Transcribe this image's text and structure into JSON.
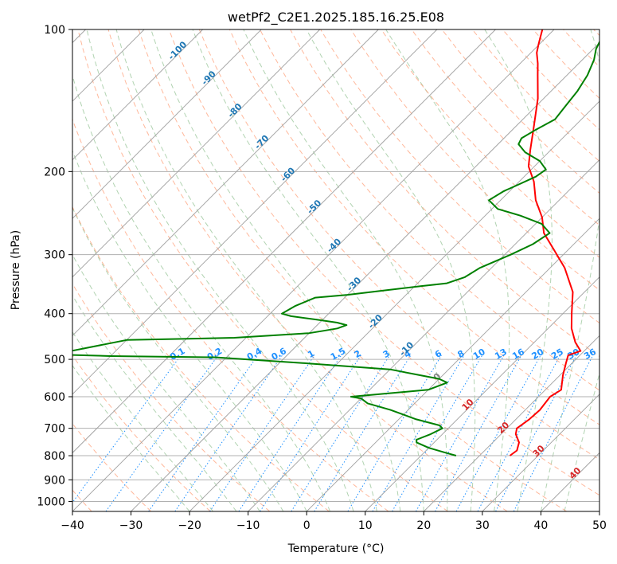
{
  "chart_data": {
    "type": "line",
    "chart_kind": "skew-t log-p diagram",
    "title": "wetPf2_C2E1.2025.185.16.25.E08",
    "xlabel": "Temperature (°C)",
    "ylabel": "Pressure (hPa)",
    "xlim": [
      -40,
      50
    ],
    "ylim": [
      1050,
      100
    ],
    "y_scale": "log",
    "grid": true,
    "x_ticks": [
      -40,
      -30,
      -20,
      -10,
      0,
      10,
      20,
      30,
      40,
      50
    ],
    "y_ticks": [
      100,
      200,
      300,
      400,
      500,
      600,
      700,
      800,
      900,
      1000
    ],
    "series": [
      {
        "role": "temperature",
        "color": "#ff0000",
        "points": [
          [
            25.2,
            800
          ],
          [
            25.5,
            780
          ],
          [
            24.5,
            750
          ],
          [
            22.5,
            720
          ],
          [
            21.7,
            700
          ],
          [
            22.3,
            670
          ],
          [
            22.5,
            640
          ],
          [
            22.0,
            600
          ],
          [
            22.7,
            580
          ],
          [
            20.5,
            540
          ],
          [
            19.0,
            510
          ],
          [
            18.0,
            490
          ],
          [
            19.4,
            480
          ],
          [
            17.0,
            460
          ],
          [
            14.0,
            430
          ],
          [
            11.5,
            400
          ],
          [
            8.0,
            360
          ],
          [
            2.5,
            320
          ],
          [
            -3.0,
            290
          ],
          [
            -7.0,
            270
          ],
          [
            -10.0,
            250
          ],
          [
            -14.0,
            230
          ],
          [
            -17.5,
            210
          ],
          [
            -21.0,
            195
          ],
          [
            -23.5,
            180
          ],
          [
            -27.0,
            160
          ],
          [
            -31.0,
            140
          ],
          [
            -35.0,
            125
          ],
          [
            -37.0,
            118
          ],
          [
            -39.0,
            112
          ],
          [
            -40.0,
            108
          ],
          [
            -41.0,
            104
          ],
          [
            -42.0,
            100
          ]
        ]
      },
      {
        "role": "dewpoint",
        "color": "#008000",
        "points": [
          [
            16.0,
            800
          ],
          [
            14.0,
            790
          ],
          [
            10.0,
            770
          ],
          [
            7.0,
            750
          ],
          [
            6.5,
            740
          ],
          [
            8.0,
            720
          ],
          [
            9.0,
            700
          ],
          [
            8.0,
            690
          ],
          [
            3.0,
            670
          ],
          [
            -3.0,
            640
          ],
          [
            -8.0,
            620
          ],
          [
            -10.0,
            605
          ],
          [
            -12.0,
            600
          ],
          [
            0.0,
            580
          ],
          [
            2.0,
            560
          ],
          [
            0.0,
            550
          ],
          [
            -4.0,
            540
          ],
          [
            -10.0,
            525
          ],
          [
            -25.0,
            510
          ],
          [
            -42.0,
            495
          ],
          [
            -60.0,
            492
          ],
          [
            -70.0,
            488
          ],
          [
            -60.0,
            455
          ],
          [
            -42.0,
            450
          ],
          [
            -30.0,
            440
          ],
          [
            -28.0,
            435
          ],
          [
            -26.0,
            430
          ],
          [
            -25.0,
            423
          ],
          [
            -27.0,
            418
          ],
          [
            -31.0,
            412
          ],
          [
            -36.0,
            405
          ],
          [
            -38.0,
            400
          ],
          [
            -37.0,
            385
          ],
          [
            -35.0,
            370
          ],
          [
            -30.0,
            365
          ],
          [
            -25.0,
            358
          ],
          [
            -19.0,
            350
          ],
          [
            -15.0,
            345
          ],
          [
            -13.0,
            335
          ],
          [
            -12.0,
            320
          ],
          [
            -9.0,
            300
          ],
          [
            -7.0,
            285
          ],
          [
            -6.0,
            270
          ],
          [
            -9.0,
            258
          ],
          [
            -14.0,
            248
          ],
          [
            -19.0,
            240
          ],
          [
            -22.0,
            230
          ],
          [
            -21.0,
            220
          ],
          [
            -20.0,
            215
          ],
          [
            -18.0,
            205
          ],
          [
            -17.5,
            198
          ],
          [
            -20.0,
            190
          ],
          [
            -24.0,
            182
          ],
          [
            -26.5,
            175
          ],
          [
            -27.0,
            170
          ],
          [
            -26.0,
            163
          ],
          [
            -24.5,
            155
          ],
          [
            -25.0,
            145
          ],
          [
            -25.5,
            135
          ],
          [
            -26.5,
            125
          ],
          [
            -28.0,
            116
          ],
          [
            -29.5,
            110
          ],
          [
            -30.5,
            104
          ],
          [
            -31.0,
            100
          ]
        ]
      }
    ],
    "isotherms": {
      "color": "#a0a0a0",
      "values": [
        -100,
        -90,
        -80,
        -70,
        -60,
        -50,
        -40,
        -30,
        -20,
        -10,
        0,
        10,
        20,
        30,
        40,
        50
      ]
    },
    "dry_adiabats": {
      "color": "#ffa07a",
      "style": "dashed"
    },
    "moist_adiabats": {
      "color": "#90c090",
      "style": "dashed"
    },
    "ice_lines": {
      "color": "#d2b48c",
      "style": "dashed"
    },
    "mixing_ratio_lines": {
      "color": "#1e90ff",
      "style": "dotted",
      "values": [
        "0.1",
        "0.2",
        "0.4",
        "0.6",
        "1",
        "1.5",
        "2",
        "3",
        "4",
        "6",
        "8",
        "10",
        "13",
        "16",
        "20",
        "25",
        "30",
        "36"
      ]
    },
    "isotherm_labels": {
      "color": "#1f77b4",
      "values": [
        "-100",
        "-90",
        "-80",
        "-70",
        "-60",
        "-50",
        "-40",
        "-30",
        "-20",
        "-10"
      ]
    },
    "zero_label": {
      "text": "0",
      "color": "#808080"
    },
    "warm_labels": {
      "color": "#d62728",
      "values": [
        "10",
        "20",
        "30",
        "40"
      ]
    }
  }
}
